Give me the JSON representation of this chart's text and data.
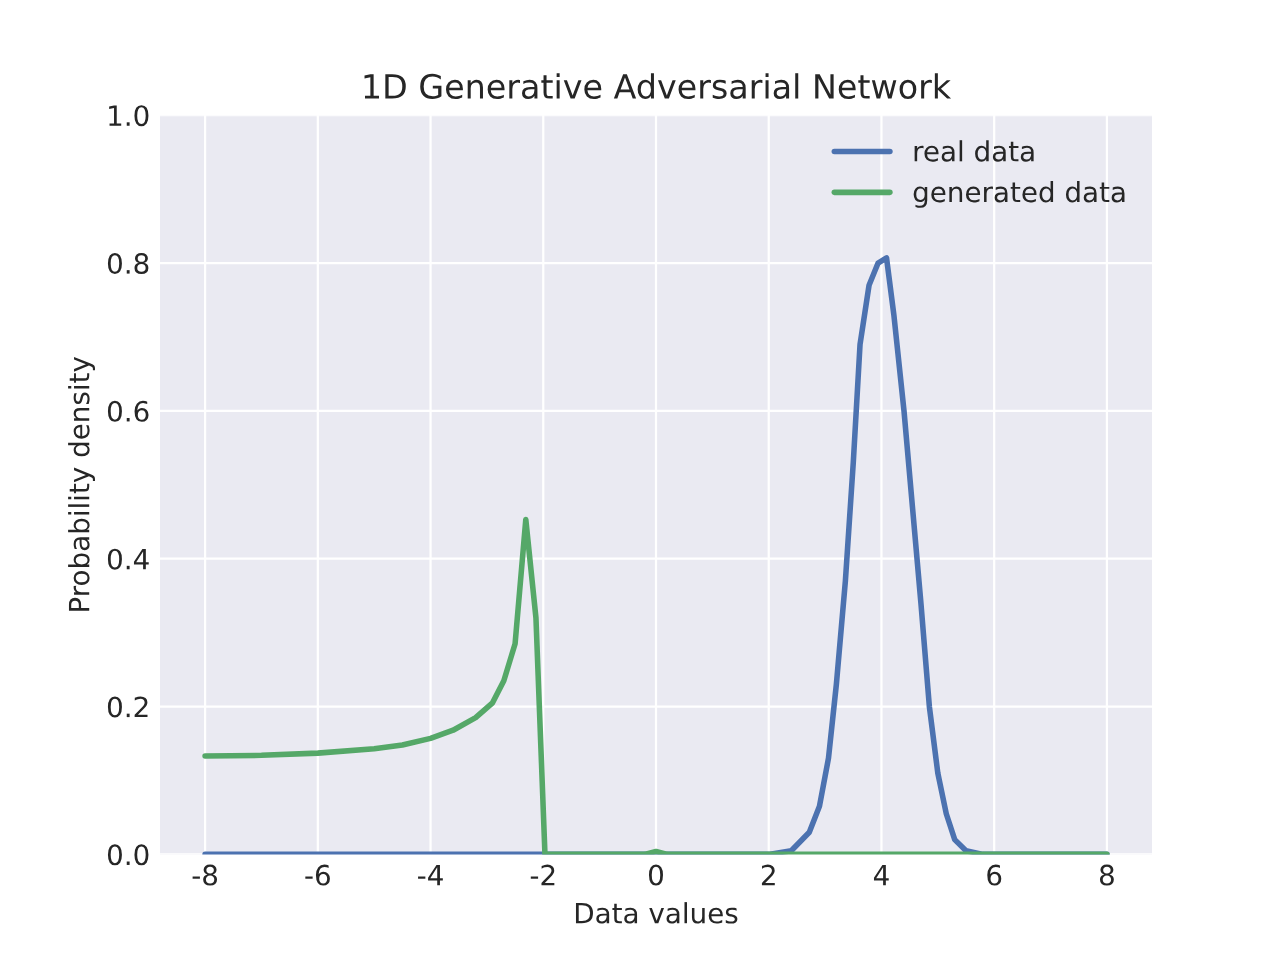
{
  "chart_data": {
    "type": "line",
    "title": "1D Generative Adversarial Network",
    "xlabel": "Data values",
    "ylabel": "Probability density",
    "xlim": [
      -8.8,
      8.8
    ],
    "ylim": [
      0,
      1.0
    ],
    "xticks": [
      -8,
      -6,
      -4,
      -2,
      0,
      2,
      4,
      6,
      8
    ],
    "yticks": [
      {
        "value": 0,
        "label": "0.0"
      },
      0.2,
      0.4,
      0.6,
      0.8,
      {
        "value": 1,
        "label": "1.0"
      }
    ],
    "grid": true,
    "legend": "top right",
    "series": [
      {
        "name": "real data",
        "color": "#4c72b0",
        "x": [
          -8,
          0,
          2.0,
          2.4,
          2.72,
          2.9,
          3.06,
          3.2,
          3.36,
          3.5,
          3.62,
          3.78,
          3.94,
          4.09,
          4.22,
          4.4,
          4.55,
          4.7,
          4.85,
          5.0,
          5.15,
          5.3,
          5.5,
          5.8,
          8
        ],
        "values": [
          0,
          0,
          0,
          0.005,
          0.03,
          0.065,
          0.13,
          0.23,
          0.37,
          0.53,
          0.69,
          0.77,
          0.8,
          0.807,
          0.73,
          0.6,
          0.47,
          0.34,
          0.2,
          0.11,
          0.055,
          0.02,
          0.005,
          0,
          0
        ]
      },
      {
        "name": "generated data",
        "color": "#55a868",
        "x": [
          -8,
          -7,
          -6,
          -5,
          -4.5,
          -4,
          -3.6,
          -3.2,
          -2.9,
          -2.7,
          -2.5,
          -2.31,
          -2.13,
          -1.97,
          -0.2,
          0,
          0.2,
          8
        ],
        "values": [
          0.133,
          0.134,
          0.137,
          0.143,
          0.148,
          0.157,
          0.168,
          0.185,
          0.205,
          0.235,
          0.285,
          0.453,
          0.32,
          0,
          0,
          0.004,
          0,
          0
        ]
      }
    ]
  }
}
